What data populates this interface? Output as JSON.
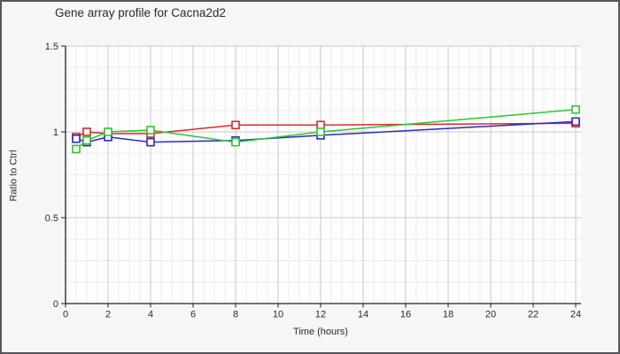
{
  "chart_data": {
    "type": "line",
    "title": "Gene array profile for Cacna2d2",
    "xlabel": "Time (hours)",
    "ylabel": "Ratio to Ctrl",
    "x": [
      0.5,
      1,
      2,
      4,
      8,
      12,
      24
    ],
    "series": [
      {
        "name": "red-series",
        "color": "#dc2a2a",
        "marker": "square",
        "values": [
          0.97,
          1.0,
          0.99,
          0.99,
          1.04,
          1.04,
          1.05
        ]
      },
      {
        "name": "blue-series",
        "color": "#2a2ac8",
        "marker": "square",
        "values": [
          0.96,
          0.94,
          0.97,
          0.94,
          0.95,
          0.98,
          1.06
        ]
      },
      {
        "name": "green-series",
        "color": "#2fc62f",
        "marker": "square",
        "values": [
          0.9,
          0.95,
          1.0,
          1.01,
          0.94,
          1.0,
          1.13
        ]
      }
    ],
    "xlim": [
      0,
      24
    ],
    "ylim": [
      0,
      1.5
    ],
    "xticks": [
      0,
      2,
      4,
      6,
      8,
      10,
      12,
      14,
      16,
      18,
      20,
      22,
      24
    ],
    "yticks": [
      0,
      0.5,
      1,
      1.5
    ],
    "x_minor_step": 0.5,
    "y_minor_step": 0.125,
    "grid": true,
    "legend": "none"
  },
  "colors": {
    "frame_border": "#55565a",
    "canvas_bg": "#f6f6f6",
    "plot_bg": "#fdfdfd",
    "grid_minor": "#ebebeb",
    "grid_major": "#c9c9c9",
    "axis": "#222222",
    "tick_text": "#2b2b2b",
    "marker_fill": "#ffffff"
  }
}
